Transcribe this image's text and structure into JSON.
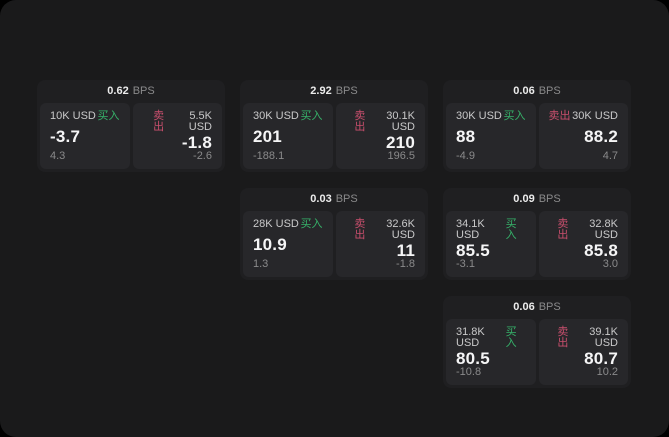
{
  "labels": {
    "bps": "BPS",
    "buy": "买入",
    "sell": "卖出"
  },
  "colors": {
    "buy": "#36b36a",
    "sell": "#c94f6d",
    "window_bg": "#1a1a1b",
    "card_bg": "#1f1f21",
    "tile_bg": "#27272a"
  },
  "cards": [
    {
      "bps": "0.62",
      "buy": {
        "amount": "10K USD",
        "value": "-3.7",
        "delta": "4.3"
      },
      "sell": {
        "amount": "5.5K USD",
        "value": "-1.8",
        "delta": "-2.6"
      }
    },
    {
      "bps": "2.92",
      "buy": {
        "amount": "30K USD",
        "value": "201",
        "delta": "-188.1"
      },
      "sell": {
        "amount": "30.1K USD",
        "value": "210",
        "delta": "196.5"
      }
    },
    {
      "bps": "0.06",
      "buy": {
        "amount": "30K USD",
        "value": "88",
        "delta": "-4.9"
      },
      "sell": {
        "amount": "30K USD",
        "value": "88.2",
        "delta": "4.7"
      }
    },
    {
      "bps": "0.03",
      "buy": {
        "amount": "28K USD",
        "value": "10.9",
        "delta": "1.3"
      },
      "sell": {
        "amount": "32.6K USD",
        "value": "11",
        "delta": "-1.8"
      }
    },
    {
      "bps": "0.09",
      "buy": {
        "amount": "34.1K USD",
        "value": "85.5",
        "delta": "-3.1"
      },
      "sell": {
        "amount": "32.8K USD",
        "value": "85.8",
        "delta": "3.0"
      }
    },
    {
      "bps": "0.06",
      "buy": {
        "amount": "31.8K USD",
        "value": "80.5",
        "delta": "-10.8"
      },
      "sell": {
        "amount": "39.1K USD",
        "value": "80.7",
        "delta": "10.2"
      }
    }
  ]
}
